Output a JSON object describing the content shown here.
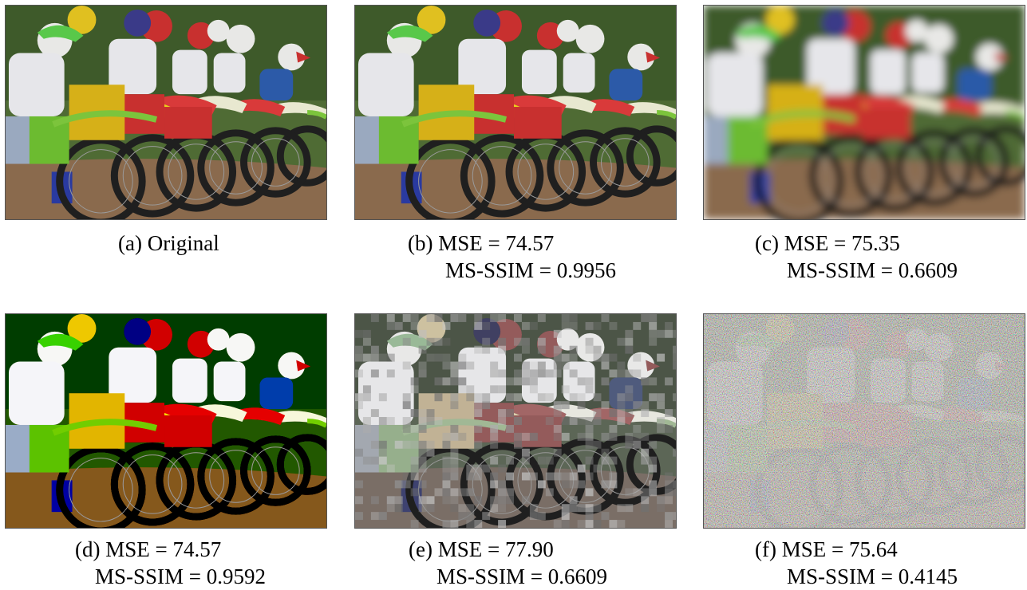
{
  "figure": {
    "panels": [
      {
        "id": "a",
        "caption": "(a) Original",
        "line2": "",
        "variant": "original"
      },
      {
        "id": "b",
        "caption": "(b) MSE = 74.57",
        "line2": "MS-SSIM = 0.9956",
        "variant": "original"
      },
      {
        "id": "c",
        "caption": "(c) MSE = 75.35",
        "line2": "MS-SSIM = 0.6609",
        "variant": "blur"
      },
      {
        "id": "d",
        "caption": "(d) MSE = 74.57",
        "line2": "MS-SSIM = 0.9592",
        "variant": "original"
      },
      {
        "id": "e",
        "caption": "(e) MSE = 77.90",
        "line2": "MS-SSIM = 0.6609",
        "variant": "jpeg"
      },
      {
        "id": "f",
        "caption": "(f) MSE = 75.64",
        "line2": "MS-SSIM = 0.4145",
        "variant": "noise"
      }
    ],
    "palette": {
      "grass": "#4f6b34",
      "dirt": "#8a6a4d",
      "helmet_yellow": "#e0c020",
      "helmet_green": "#59c84a",
      "helmet_red": "#c8302f",
      "helmet_white": "#e8e8e6",
      "fender_yellow": "#e8d21a",
      "fender_red": "#d93a3a",
      "fender_green": "#7cc43c",
      "tire": "#1f1f1f",
      "rider_white": "#e6e6ea",
      "rider_blue": "#2c5aa8"
    }
  }
}
